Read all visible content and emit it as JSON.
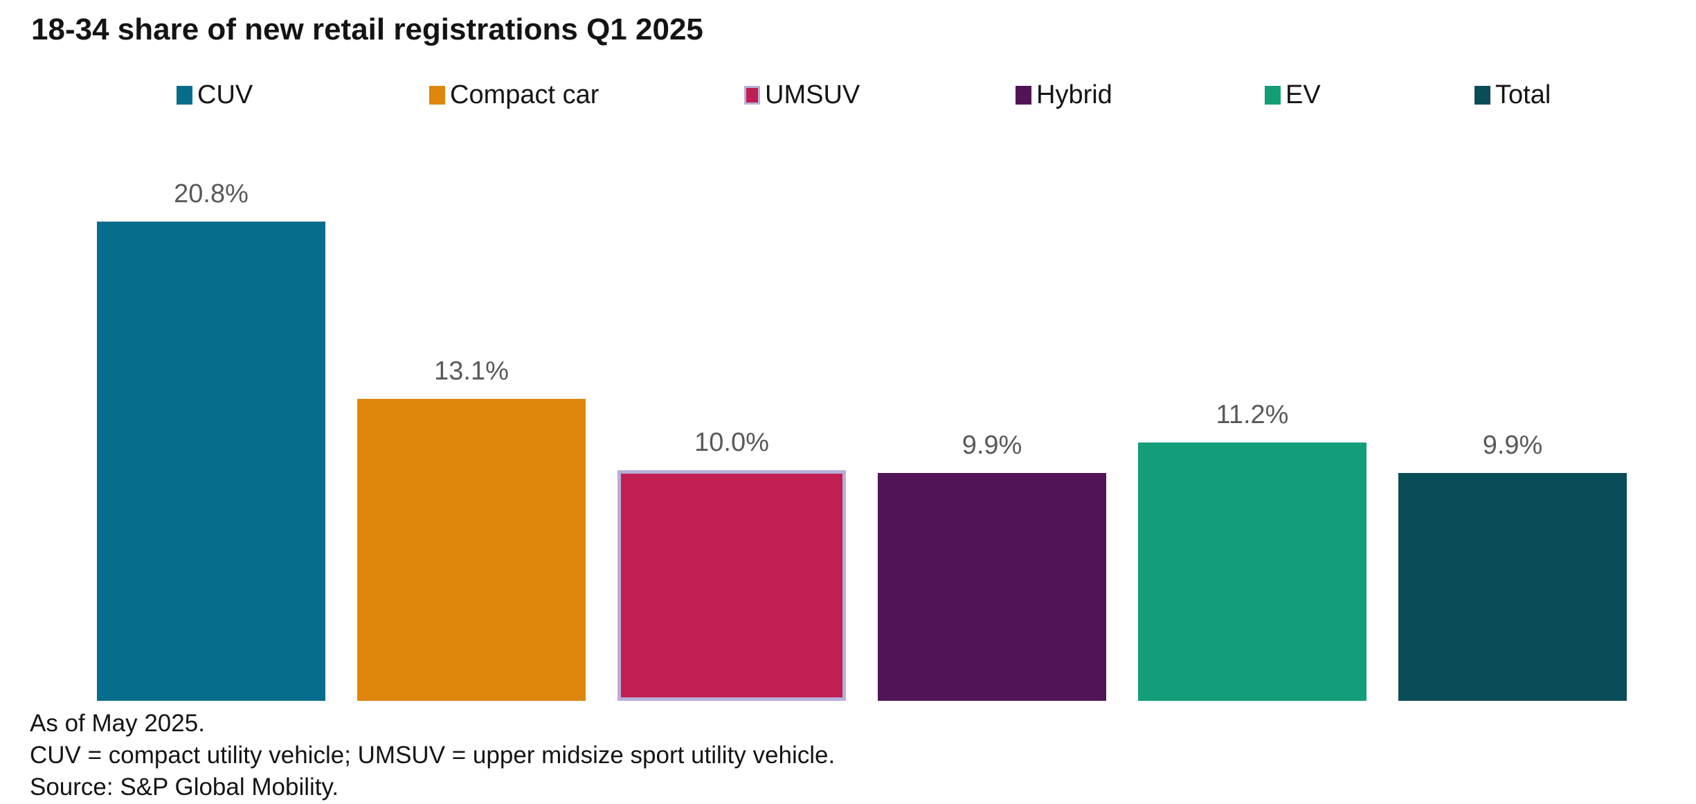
{
  "chart_data": {
    "type": "bar",
    "title": "18-34 share of new retail registrations Q1 2025",
    "categories": [
      "CUV",
      "Compact car",
      "UMSUV",
      "Hybrid",
      "EV",
      "Total"
    ],
    "values": [
      20.8,
      13.1,
      10.0,
      9.9,
      11.2,
      9.9
    ],
    "value_labels": [
      "20.8%",
      "13.1%",
      "10.0%",
      "9.9%",
      "11.2%",
      "9.9%"
    ],
    "series_colors": [
      "#076d8c",
      "#df860d",
      "#c01f53",
      "#511557",
      "#149d79",
      "#0b4c59"
    ],
    "highlight": {
      "category": "UMSUV",
      "index": 2,
      "border_color": "#b9aed8"
    },
    "value_label_color": "#595959",
    "legend_position": "top",
    "grid": false,
    "xlabel": "",
    "ylabel": "",
    "ylim": [
      0,
      22
    ],
    "footnotes": [
      "As of May 2025.",
      "CUV = compact utility vehicle; UMSUV = upper midsize sport utility vehicle.",
      "Source: S&P Global Mobility."
    ]
  }
}
